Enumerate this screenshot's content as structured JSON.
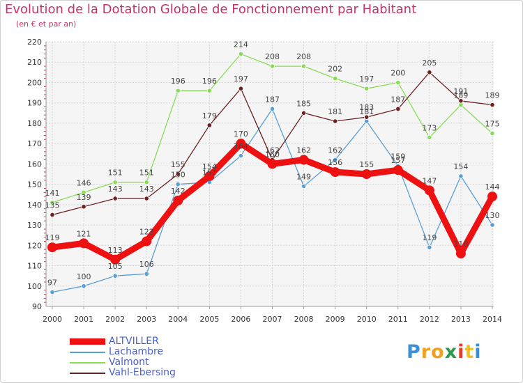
{
  "header": {
    "title": "Evolution de la Dotation Globale de Fonctionnement par Habitant",
    "subtitle": "(en € et par an)"
  },
  "chart_data": {
    "type": "line",
    "title": "Evolution de la Dotation Globale de Fonctionnement par Habitant",
    "subtitle": "(en € et par an)",
    "xlabel": "",
    "ylabel": "",
    "categories": [
      "2000",
      "2001",
      "2002",
      "2003",
      "2004",
      "2005",
      "2006",
      "2007",
      "2008",
      "2009",
      "2010",
      "2011",
      "2012",
      "2013",
      "2014"
    ],
    "ylim": [
      90,
      220
    ],
    "yticks": [
      90,
      100,
      110,
      120,
      130,
      140,
      150,
      160,
      170,
      180,
      190,
      200,
      210,
      220
    ],
    "grid": true,
    "series": [
      {
        "name": "ALTVILLER",
        "color": "#ee1111",
        "values": [
          119,
          121,
          113,
          122,
          142,
          154,
          170,
          160,
          162,
          156,
          155,
          157,
          147,
          116,
          144
        ]
      },
      {
        "name": "Lachambre",
        "color": "#5a9ed6",
        "values": [
          97,
          100,
          105,
          106,
          150,
          151,
          164,
          187,
          149,
          162,
          181,
          159,
          119,
          154,
          130
        ]
      },
      {
        "name": "Valmont",
        "color": "#88dd55",
        "values": [
          141,
          146,
          151,
          151,
          196,
          196,
          214,
          208,
          208,
          202,
          197,
          200,
          173,
          189,
          175
        ]
      },
      {
        "name": "Vahl-Ebersing",
        "color": "#6b1f1f",
        "values": [
          135,
          139,
          143,
          143,
          155,
          179,
          197,
          162,
          185,
          181,
          183,
          187,
          205,
          191,
          189
        ]
      }
    ]
  },
  "legend": {
    "items": [
      {
        "label": "ALTVILLER"
      },
      {
        "label": "Lachambre"
      },
      {
        "label": "Valmont"
      },
      {
        "label": "Vahl-Ebersing"
      }
    ]
  },
  "brand": {
    "letters": [
      "P",
      "r",
      "o",
      "x",
      "i",
      "t",
      "i"
    ],
    "colors": [
      "#3a8fd8",
      "#f0a020",
      "#f0a020",
      "#2a9a4a",
      "#e83a2a",
      "#f0c020",
      "#3a8fd8"
    ]
  }
}
